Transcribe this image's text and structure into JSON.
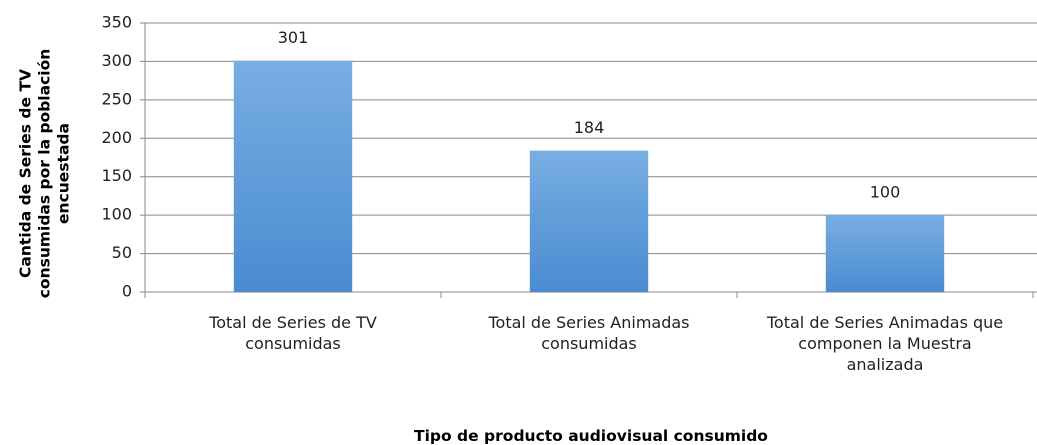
{
  "chart_data": {
    "type": "bar",
    "categories": [
      "Total de Series de TV consumidas",
      "Total de Series Animadas consumidas",
      "Total de Series Animadas que componen la Muestra analizada"
    ],
    "values": [
      301,
      184,
      100
    ],
    "color": "#5b9bd5",
    "ylim": [
      0,
      350
    ],
    "yticks": [
      0,
      50,
      100,
      150,
      200,
      250,
      300,
      350
    ],
    "grid": true,
    "x_label": "Tipo de producto audiovisual consumido",
    "y_label": "Cantida de Series de TV consumidas por la población encuestada"
  }
}
